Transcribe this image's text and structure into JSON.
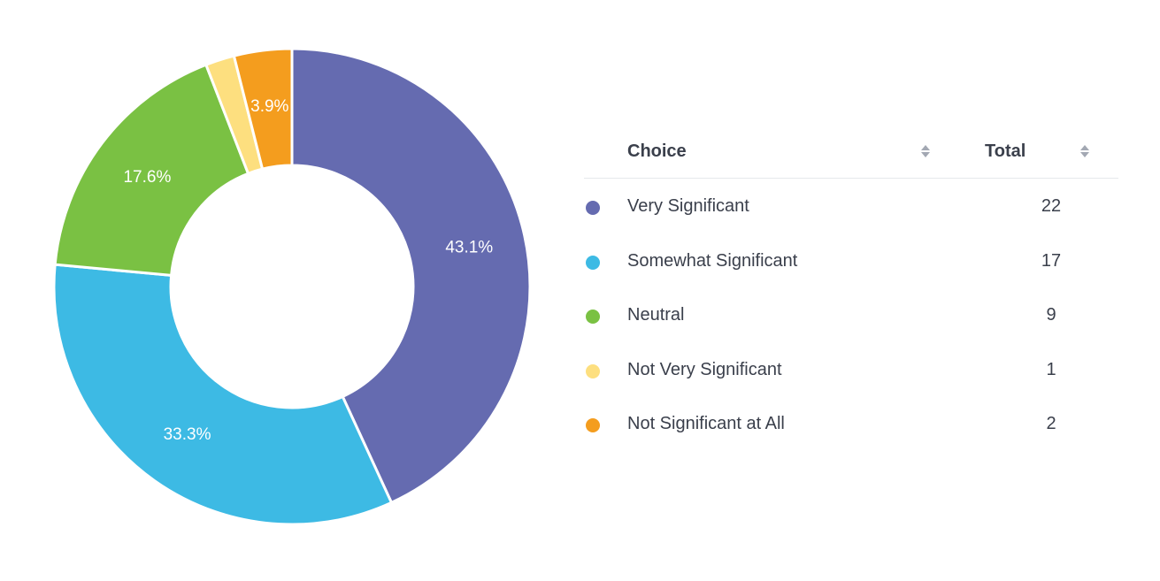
{
  "chart_data": {
    "type": "pie",
    "donut": true,
    "categories": [
      "Very Significant",
      "Somewhat Significant",
      "Neutral",
      "Not Very Significant",
      "Not Significant at All"
    ],
    "values": [
      22,
      17,
      9,
      1,
      2
    ],
    "percent_labels": [
      "43.1%",
      "33.3%",
      "17.6%",
      "",
      "3.9%"
    ],
    "colors": [
      "#656bb0",
      "#3dbae4",
      "#7ac143",
      "#fddf7f",
      "#f49d1e"
    ],
    "title": "",
    "legend": "right"
  },
  "table": {
    "headers": {
      "choice": "Choice",
      "total": "Total"
    },
    "rows": [
      {
        "label": "Very Significant",
        "total": "22",
        "color": "#656bb0"
      },
      {
        "label": "Somewhat Significant",
        "total": "17",
        "color": "#3dbae4"
      },
      {
        "label": "Neutral",
        "total": "9",
        "color": "#7ac143"
      },
      {
        "label": "Not Very Significant",
        "total": "1",
        "color": "#fddf7f"
      },
      {
        "label": "Not Significant at All",
        "total": "2",
        "color": "#f49d1e"
      }
    ]
  }
}
